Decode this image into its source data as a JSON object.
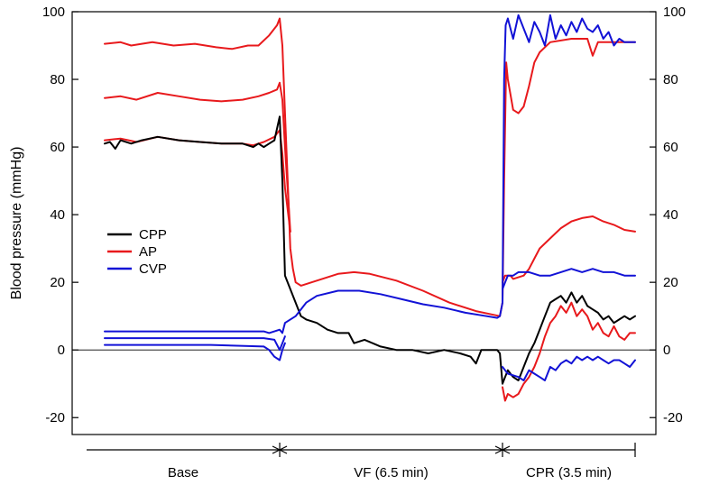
{
  "chart_data": {
    "type": "line",
    "ylabel": "Blood pressure (mmHg)",
    "ylim": [
      -25,
      100
    ],
    "yticks": [
      -20,
      0,
      20,
      40,
      60,
      80,
      100
    ],
    "xlim": [
      0,
      100
    ],
    "zero_line": true,
    "legend": [
      {
        "name": "CPP",
        "color": "#000000"
      },
      {
        "name": "AP",
        "color": "#e8191c"
      },
      {
        "name": "CVP",
        "color": "#1212d6"
      }
    ],
    "phases": [
      {
        "label": "Base",
        "start": 0,
        "end": 33
      },
      {
        "label": "VF (6.5 min)",
        "start": 33,
        "end": 75
      },
      {
        "label": "CPR (3.5 min)",
        "start": 75,
        "end": 100
      }
    ],
    "series": [
      {
        "color": "#e8191c",
        "points": [
          [
            0,
            90.5
          ],
          [
            3,
            91
          ],
          [
            5,
            90
          ],
          [
            9,
            91
          ],
          [
            13,
            90
          ],
          [
            17,
            90.5
          ],
          [
            21,
            89.5
          ],
          [
            24,
            89
          ],
          [
            27,
            90
          ],
          [
            29,
            90
          ],
          [
            31,
            93
          ],
          [
            32.5,
            96
          ],
          [
            33,
            98
          ],
          [
            33.5,
            90
          ],
          [
            34,
            70
          ],
          [
            34.5,
            50
          ],
          [
            35,
            30
          ],
          [
            35.5,
            24
          ],
          [
            36,
            20
          ],
          [
            37,
            19
          ],
          [
            40,
            20.5
          ],
          [
            44,
            22.5
          ],
          [
            47,
            23
          ],
          [
            50,
            22.5
          ],
          [
            55,
            20.5
          ],
          [
            60,
            17.5
          ],
          [
            65,
            14
          ],
          [
            70,
            11.5
          ],
          [
            73,
            10.5
          ],
          [
            74.5,
            10
          ],
          [
            75,
            14
          ],
          [
            75.3,
            50
          ],
          [
            75.7,
            85
          ],
          [
            76,
            80
          ],
          [
            77,
            71
          ],
          [
            78,
            70
          ],
          [
            79,
            72
          ],
          [
            80,
            78
          ],
          [
            81,
            85
          ],
          [
            82,
            88
          ],
          [
            84,
            91
          ],
          [
            88,
            92
          ],
          [
            91,
            92
          ],
          [
            92,
            87
          ],
          [
            93,
            91
          ],
          [
            95,
            91
          ],
          [
            100,
            91
          ]
        ]
      },
      {
        "color": "#e8191c",
        "points": [
          [
            0,
            74.5
          ],
          [
            3,
            75
          ],
          [
            6,
            74
          ],
          [
            10,
            76
          ],
          [
            14,
            75
          ],
          [
            18,
            74
          ],
          [
            22,
            73.5
          ],
          [
            26,
            74
          ],
          [
            29,
            75
          ],
          [
            31,
            76
          ],
          [
            32.5,
            77
          ],
          [
            33,
            79
          ],
          [
            33.5,
            74
          ],
          [
            34,
            60
          ],
          [
            35,
            35
          ]
        ]
      },
      {
        "color": "#e8191c",
        "points": [
          [
            0,
            62
          ],
          [
            3,
            62.5
          ],
          [
            6,
            61.5
          ],
          [
            10,
            63
          ],
          [
            14,
            62
          ],
          [
            18,
            61.5
          ],
          [
            22,
            61
          ],
          [
            26,
            61
          ],
          [
            28,
            60.5
          ],
          [
            30,
            61.5
          ],
          [
            32,
            63
          ],
          [
            33,
            65
          ],
          [
            33.5,
            58
          ],
          [
            34,
            48
          ],
          [
            35,
            35
          ]
        ]
      },
      {
        "color": "#e8191c",
        "points": [
          [
            75,
            20
          ],
          [
            75.5,
            22
          ],
          [
            76.5,
            22
          ],
          [
            77,
            21
          ],
          [
            79,
            22
          ],
          [
            80,
            24
          ],
          [
            81,
            27
          ],
          [
            82,
            30
          ],
          [
            84,
            33
          ],
          [
            86,
            36
          ],
          [
            88,
            38
          ],
          [
            90,
            39
          ],
          [
            92,
            39.5
          ],
          [
            94,
            38
          ],
          [
            96,
            37
          ],
          [
            98,
            35.5
          ],
          [
            100,
            35
          ]
        ]
      },
      {
        "color": "#e8191c",
        "points": [
          [
            75,
            -11
          ],
          [
            75.5,
            -15
          ],
          [
            76,
            -13
          ],
          [
            77,
            -14
          ],
          [
            78,
            -13
          ],
          [
            79,
            -10
          ],
          [
            80,
            -8
          ],
          [
            81,
            -5
          ],
          [
            82,
            -1
          ],
          [
            83,
            4
          ],
          [
            84,
            8
          ],
          [
            85,
            10
          ],
          [
            86,
            13
          ],
          [
            87,
            11
          ],
          [
            88,
            14
          ],
          [
            89,
            10
          ],
          [
            90,
            12
          ],
          [
            91,
            10
          ],
          [
            92,
            6
          ],
          [
            93,
            8
          ],
          [
            94,
            5
          ],
          [
            95,
            4
          ],
          [
            96,
            7
          ],
          [
            97,
            4
          ],
          [
            98,
            3
          ],
          [
            99,
            5
          ],
          [
            100,
            5
          ]
        ]
      },
      {
        "color": "#000000",
        "points": [
          [
            0,
            61
          ],
          [
            1,
            61.5
          ],
          [
            2,
            59.5
          ],
          [
            3,
            62
          ],
          [
            5,
            61
          ],
          [
            7,
            62
          ],
          [
            10,
            63
          ],
          [
            14,
            62
          ],
          [
            18,
            61.5
          ],
          [
            22,
            61
          ],
          [
            26,
            61
          ],
          [
            28,
            60
          ],
          [
            29,
            61
          ],
          [
            30,
            60
          ],
          [
            31,
            61
          ],
          [
            32,
            62
          ],
          [
            33,
            69
          ],
          [
            33.5,
            50
          ],
          [
            34,
            22
          ],
          [
            35,
            18
          ],
          [
            36,
            14
          ],
          [
            37,
            10
          ],
          [
            38,
            9
          ],
          [
            40,
            8
          ],
          [
            42,
            6
          ],
          [
            44,
            5
          ],
          [
            46,
            5
          ],
          [
            47,
            2
          ],
          [
            49,
            3
          ],
          [
            52,
            1
          ],
          [
            55,
            0
          ],
          [
            58,
            0
          ],
          [
            61,
            -1
          ],
          [
            64,
            0
          ],
          [
            67,
            -1
          ],
          [
            69,
            -2
          ],
          [
            70,
            -4
          ],
          [
            71,
            0
          ],
          [
            73,
            0
          ],
          [
            74,
            0
          ],
          [
            74.5,
            -1
          ],
          [
            75,
            -10
          ],
          [
            75.5,
            -8
          ],
          [
            76,
            -6
          ],
          [
            77,
            -8
          ],
          [
            78,
            -9
          ],
          [
            79,
            -5
          ],
          [
            80,
            -1
          ],
          [
            81,
            2
          ],
          [
            82,
            6
          ],
          [
            83,
            10
          ],
          [
            84,
            14
          ],
          [
            85,
            15
          ],
          [
            86,
            16
          ],
          [
            87,
            14
          ],
          [
            88,
            17
          ],
          [
            89,
            14
          ],
          [
            90,
            16
          ],
          [
            91,
            13
          ],
          [
            92,
            12
          ],
          [
            93,
            11
          ],
          [
            94,
            9
          ],
          [
            95,
            10
          ],
          [
            96,
            8
          ],
          [
            97,
            9
          ],
          [
            98,
            10
          ],
          [
            99,
            9
          ],
          [
            100,
            10
          ]
        ]
      },
      {
        "color": "#1212d6",
        "points": [
          [
            0,
            5.5
          ],
          [
            5,
            5.5
          ],
          [
            10,
            5.5
          ],
          [
            15,
            5.5
          ],
          [
            20,
            5.5
          ],
          [
            25,
            5.5
          ],
          [
            30,
            5.5
          ],
          [
            31,
            5
          ],
          [
            32,
            5.5
          ],
          [
            33,
            6
          ],
          [
            33.5,
            5
          ],
          [
            34,
            8
          ],
          [
            36,
            10
          ],
          [
            38,
            14
          ],
          [
            40,
            16
          ],
          [
            44,
            17.5
          ],
          [
            48,
            17.5
          ],
          [
            52,
            16.5
          ],
          [
            56,
            15
          ],
          [
            60,
            13.5
          ],
          [
            64,
            12.5
          ],
          [
            68,
            11
          ],
          [
            72,
            10
          ],
          [
            74,
            9.5
          ],
          [
            74.5,
            10
          ],
          [
            75,
            14
          ],
          [
            75.3,
            80
          ],
          [
            75.6,
            96
          ],
          [
            76,
            98
          ],
          [
            77,
            92
          ],
          [
            78,
            99
          ],
          [
            79,
            95
          ],
          [
            80,
            91
          ],
          [
            81,
            97
          ],
          [
            82,
            94
          ],
          [
            83,
            90
          ],
          [
            84,
            99
          ],
          [
            85,
            92
          ],
          [
            86,
            96
          ],
          [
            87,
            93
          ],
          [
            88,
            97
          ],
          [
            89,
            94
          ],
          [
            90,
            98
          ],
          [
            91,
            95
          ],
          [
            92,
            94
          ],
          [
            93,
            96
          ],
          [
            94,
            92
          ],
          [
            95,
            94
          ],
          [
            96,
            90
          ],
          [
            97,
            92
          ],
          [
            98,
            91
          ],
          [
            99,
            91
          ],
          [
            100,
            91
          ]
        ]
      },
      {
        "color": "#1212d6",
        "points": [
          [
            0,
            3.5
          ],
          [
            10,
            3.5
          ],
          [
            20,
            3.5
          ],
          [
            30,
            3.5
          ],
          [
            32,
            3
          ],
          [
            33,
            0
          ],
          [
            33.5,
            2
          ],
          [
            34,
            4
          ]
        ]
      },
      {
        "color": "#1212d6",
        "points": [
          [
            0,
            1.5
          ],
          [
            10,
            1.5
          ],
          [
            20,
            1.5
          ],
          [
            30,
            1
          ],
          [
            31,
            0
          ],
          [
            32,
            -2
          ],
          [
            33,
            -3
          ],
          [
            33.5,
            0
          ],
          [
            34,
            2
          ]
        ]
      },
      {
        "color": "#1212d6",
        "points": [
          [
            75,
            18
          ],
          [
            75.5,
            20
          ],
          [
            76,
            22
          ],
          [
            77,
            22
          ],
          [
            78,
            23
          ],
          [
            80,
            23
          ],
          [
            82,
            22
          ],
          [
            84,
            22
          ],
          [
            86,
            23
          ],
          [
            88,
            24
          ],
          [
            90,
            23
          ],
          [
            92,
            24
          ],
          [
            94,
            23
          ],
          [
            96,
            23
          ],
          [
            98,
            22
          ],
          [
            100,
            22
          ]
        ]
      },
      {
        "color": "#1212d6",
        "points": [
          [
            75,
            -5
          ],
          [
            75.5,
            -6
          ],
          [
            76,
            -7
          ],
          [
            78,
            -8
          ],
          [
            79,
            -9
          ],
          [
            80,
            -6
          ],
          [
            81,
            -7
          ],
          [
            82,
            -8
          ],
          [
            83,
            -9
          ],
          [
            84,
            -5
          ],
          [
            85,
            -6
          ],
          [
            86,
            -4
          ],
          [
            87,
            -3
          ],
          [
            88,
            -4
          ],
          [
            89,
            -2
          ],
          [
            90,
            -3
          ],
          [
            91,
            -2
          ],
          [
            92,
            -3
          ],
          [
            93,
            -2
          ],
          [
            94,
            -3
          ],
          [
            95,
            -4
          ],
          [
            96,
            -3
          ],
          [
            97,
            -3
          ],
          [
            98,
            -4
          ],
          [
            99,
            -5
          ],
          [
            100,
            -3
          ]
        ]
      }
    ]
  }
}
